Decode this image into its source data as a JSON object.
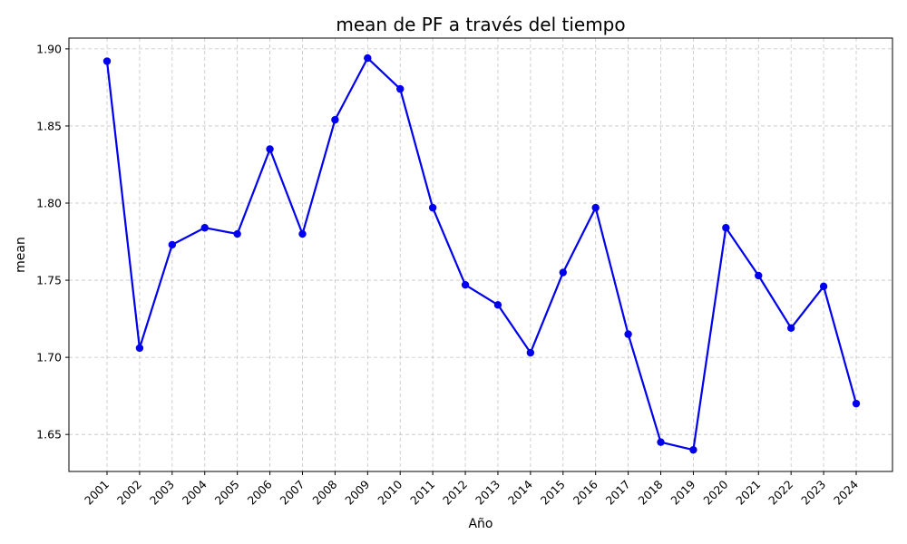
{
  "chart_data": {
    "type": "line",
    "title": "mean de PF a través del tiempo",
    "xlabel": "Año",
    "ylabel": "mean",
    "categories": [
      "2001",
      "2002",
      "2003",
      "2004",
      "2005",
      "2006",
      "2007",
      "2008",
      "2009",
      "2010",
      "2011",
      "2012",
      "2013",
      "2014",
      "2015",
      "2016",
      "2017",
      "2018",
      "2019",
      "2020",
      "2021",
      "2022",
      "2023",
      "2024"
    ],
    "series": [
      {
        "values": [
          1.892,
          1.706,
          1.773,
          1.784,
          1.78,
          1.835,
          1.78,
          1.854,
          1.894,
          1.874,
          1.797,
          1.747,
          1.734,
          1.703,
          1.755,
          1.797,
          1.715,
          1.645,
          1.64,
          1.784,
          1.753,
          1.719,
          1.746,
          1.67
        ],
        "color": "#0000ee"
      }
    ],
    "yticks": [
      "1.65",
      "1.70",
      "1.75",
      "1.80",
      "1.85",
      "1.90"
    ],
    "ylim": [
      1.626,
      1.907
    ],
    "grid": true
  }
}
